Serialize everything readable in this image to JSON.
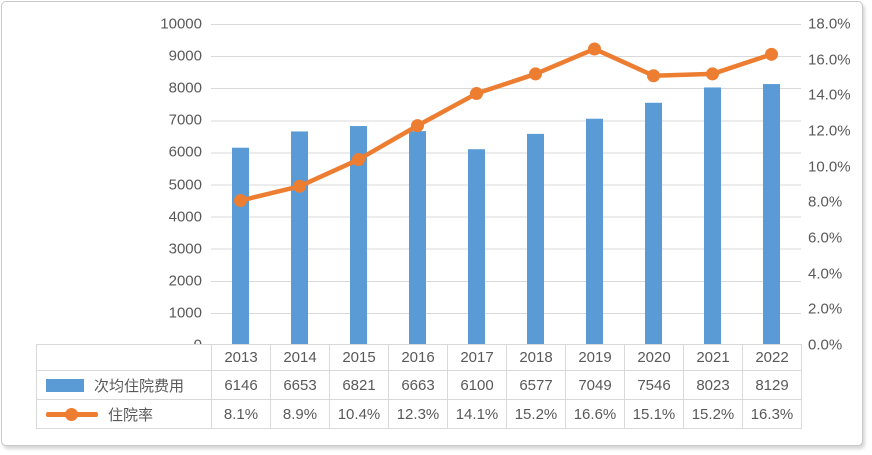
{
  "chart_data": {
    "type": "combo",
    "title": "",
    "categories": [
      "2013",
      "2014",
      "2015",
      "2016",
      "2017",
      "2018",
      "2019",
      "2020",
      "2021",
      "2022"
    ],
    "series": [
      {
        "name": "次均住院费用",
        "type": "bar",
        "axis": "left",
        "color": "#5B9BD5",
        "values": [
          6146,
          6653,
          6821,
          6663,
          6100,
          6577,
          7049,
          7546,
          8023,
          8129
        ]
      },
      {
        "name": "住院率",
        "type": "line",
        "axis": "right",
        "color": "#ED7D31",
        "values": [
          8.1,
          8.9,
          10.4,
          12.3,
          14.1,
          15.2,
          16.6,
          15.1,
          15.2,
          16.3
        ],
        "display_values": [
          "8.1%",
          "8.9%",
          "10.4%",
          "12.3%",
          "14.1%",
          "15.2%",
          "16.6%",
          "15.1%",
          "15.2%",
          "16.3%"
        ]
      }
    ],
    "left_axis": {
      "min": 0,
      "max": 10000,
      "step": 1000,
      "labels": [
        "0",
        "1000",
        "2000",
        "3000",
        "4000",
        "5000",
        "6000",
        "7000",
        "8000",
        "9000",
        "10000"
      ]
    },
    "right_axis": {
      "min": 0,
      "max": 18,
      "step": 2,
      "labels": [
        "0.0%",
        "2.0%",
        "4.0%",
        "6.0%",
        "8.0%",
        "10.0%",
        "12.0%",
        "14.0%",
        "16.0%",
        "18.0%"
      ]
    },
    "grid": "horizontal",
    "gridline_color": "#D9D9D9",
    "legend_position": "table-left",
    "data_table_shown": true
  }
}
